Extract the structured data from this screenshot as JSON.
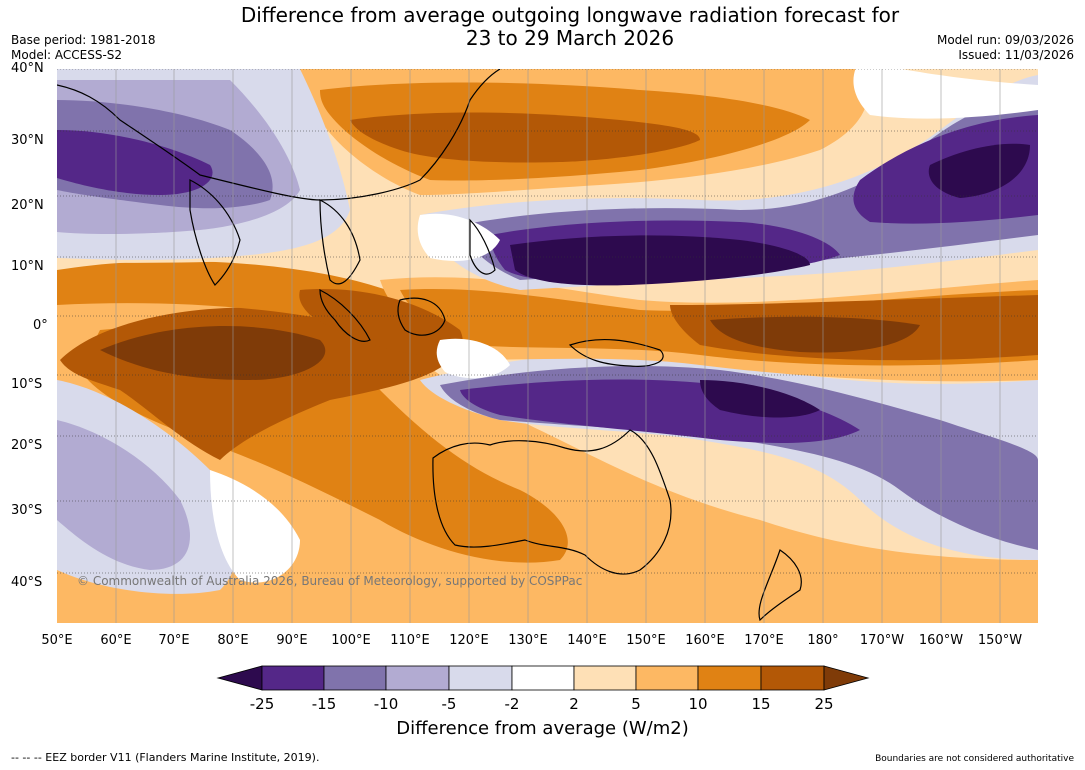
{
  "header": {
    "title_line1": "Difference from average outgoing longwave radiation forecast for",
    "title_line2": "23 to 29 March 2026",
    "base_period": "Base period: 1981-2018",
    "model": "Model: ACCESS-S2",
    "model_run": "Model run: 09/03/2026",
    "issued": "Issued: 11/03/2026"
  },
  "map": {
    "lat_labels": [
      "40°N",
      "30°N",
      "20°N",
      "10°N",
      "0°",
      "10°S",
      "20°S",
      "30°S",
      "40°S"
    ],
    "lon_labels": [
      "50°E",
      "60°E",
      "70°E",
      "80°E",
      "90°E",
      "100°E",
      "110°E",
      "120°E",
      "130°E",
      "140°E",
      "150°E",
      "160°E",
      "170°E",
      "180°",
      "170°W",
      "160°W",
      "150°W"
    ],
    "copyright": "© Commonwealth of Australia 2026, Bureau of Meteorology, supported by COSPPac"
  },
  "colorbar": {
    "title": "Difference from average (W/m2)",
    "ticks": [
      "-25",
      "-15",
      "-10",
      "-5",
      "-2",
      "2",
      "5",
      "10",
      "15",
      "25"
    ],
    "colors": [
      "#2d0a4e",
      "#542788",
      "#8073ac",
      "#b2abd2",
      "#d8daeb",
      "#ffffff",
      "#fee0b6",
      "#fdb863",
      "#e08214",
      "#b35806",
      "#7f3b08"
    ]
  },
  "footer": {
    "eez_note": "--  --  -- EEZ border V11 (Flanders Marine Institute, 2019).",
    "boundaries_note": "Boundaries are not considered authoritative"
  }
}
